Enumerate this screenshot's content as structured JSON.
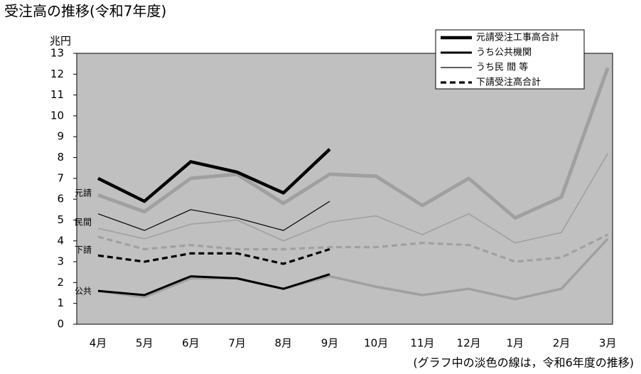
{
  "chart_data": {
    "type": "line",
    "title": "受注高の推移(令和7年度)",
    "y_label": "兆円",
    "note": "(グラフ中の淡色の線は，令和6年度の推移)",
    "categories": [
      "4月",
      "5月",
      "6月",
      "7月",
      "8月",
      "9月",
      "10月",
      "11月",
      "12月",
      "1月",
      "2月",
      "3月"
    ],
    "ylim": [
      0,
      13
    ],
    "yticks": [
      0,
      1,
      2,
      3,
      4,
      5,
      6,
      7,
      8,
      9,
      10,
      11,
      12,
      13
    ],
    "series": [
      {
        "name": "元請受注工事高合計",
        "color": "#000000",
        "dashed": false,
        "values": [
          7.0,
          5.9,
          7.8,
          7.3,
          6.3,
          8.4,
          null,
          null,
          null,
          null,
          null,
          null
        ]
      },
      {
        "name": "うち公共機関",
        "color": "#000000",
        "dashed": false,
        "values": [
          1.6,
          1.4,
          2.3,
          2.2,
          1.7,
          2.4,
          null,
          null,
          null,
          null,
          null,
          null
        ]
      },
      {
        "name": "うち民 間 等",
        "color": "#000000",
        "dashed": false,
        "values": [
          5.3,
          4.5,
          5.5,
          5.1,
          4.5,
          5.9,
          null,
          null,
          null,
          null,
          null,
          null
        ]
      },
      {
        "name": "下請受注高合計",
        "color": "#000000",
        "dashed": true,
        "values": [
          3.3,
          3.0,
          3.4,
          3.4,
          2.9,
          3.6,
          null,
          null,
          null,
          null,
          null,
          null
        ]
      }
    ],
    "previous_series": [
      {
        "color": "#a0a0a0",
        "dashed": false,
        "values": [
          6.2,
          5.4,
          7.0,
          7.2,
          5.8,
          7.2,
          7.1,
          5.7,
          7.0,
          5.1,
          6.1,
          12.3
        ]
      },
      {
        "color": "#a0a0a0",
        "dashed": false,
        "values": [
          1.6,
          1.3,
          2.2,
          2.2,
          1.7,
          2.3,
          1.8,
          1.4,
          1.7,
          1.2,
          1.7,
          4.1
        ]
      },
      {
        "color": "#a0a0a0",
        "dashed": false,
        "values": [
          4.6,
          4.1,
          4.8,
          5.0,
          4.0,
          4.9,
          5.2,
          4.3,
          5.3,
          3.9,
          4.4,
          8.2
        ]
      },
      {
        "color": "#a0a0a0",
        "dashed": true,
        "values": [
          4.2,
          3.6,
          3.8,
          3.6,
          3.6,
          3.7,
          3.7,
          3.9,
          3.8,
          3.0,
          3.2,
          4.3
        ]
      }
    ],
    "line_labels": [
      "元請",
      "公共",
      "民間",
      "下請"
    ]
  }
}
